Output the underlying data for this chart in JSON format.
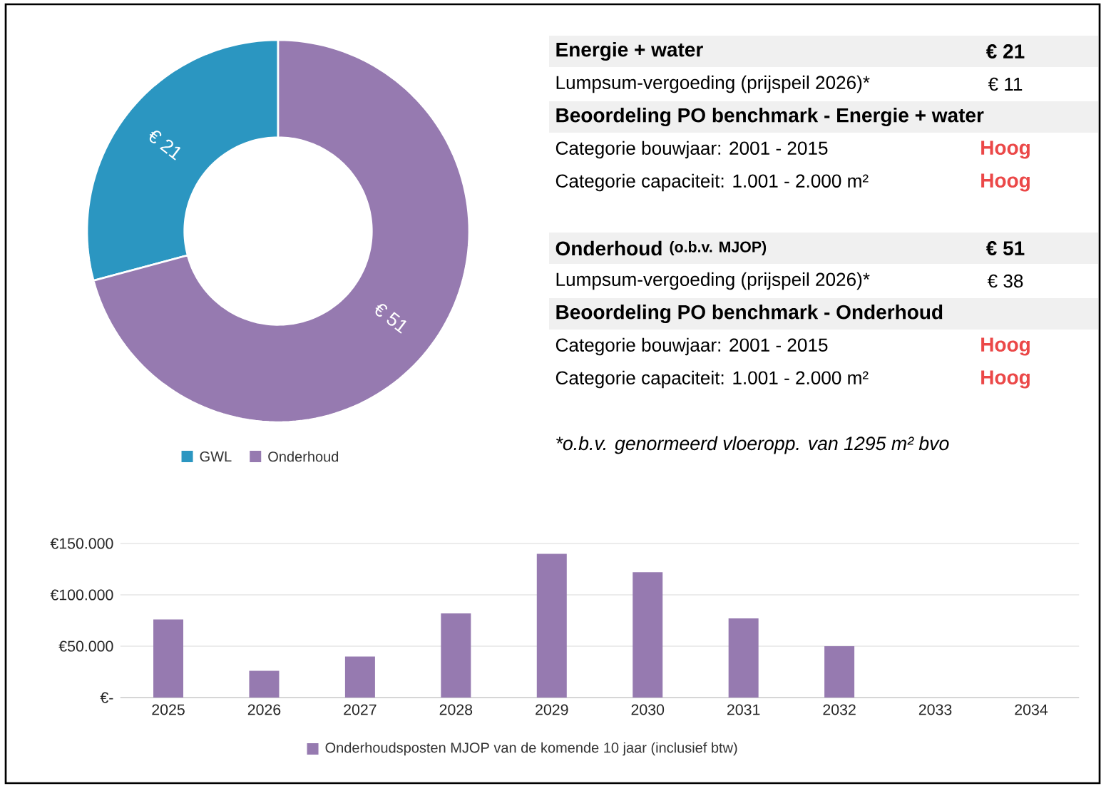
{
  "chart_data": [
    {
      "type": "donut",
      "categories": [
        "GWL",
        "Onderhoud"
      ],
      "values": [
        21,
        51
      ],
      "colors": [
        "#2b96c1",
        "#967ab0"
      ],
      "value_labels": [
        "€ 21",
        "€ 51"
      ],
      "legend": "bottom"
    },
    {
      "type": "other",
      "annotations": [
        "Energie + water",
        "€ 21",
        "Lumpsum-vergoeding (prijspeil 2026)*",
        "€ 11",
        "Beoordeling PO benchmark - Energie + water",
        "Categorie bouwjaar: 2001 - 2015",
        "Hoog",
        "Categorie capaciteit: 1.001 - 2.000 m²",
        "Hoog",
        "Onderhoud",
        "(o.b.v. MJOP)",
        "€ 51",
        "Lumpsum-vergoeding (prijspeil 2026)*",
        "€ 38",
        "Beoordeling PO benchmark - Onderhoud",
        "Categorie bouwjaar: 2001 - 2015",
        "Hoog",
        "Categorie capaciteit: 1.001 - 2.000 m²",
        "Hoog",
        "*o.b.v. genormeerd vloeropp. van 1295 m² bvo"
      ]
    },
    {
      "type": "bar",
      "categories": [
        "2025",
        "2026",
        "2027",
        "2028",
        "2029",
        "2030",
        "2031",
        "2032",
        "2033",
        "2034"
      ],
      "series": [
        {
          "name": "Onderhoudsposten MJOP van de komende 10 jaar (inclusief btw)",
          "color": "#967ab0",
          "values": [
            76000,
            26000,
            40000,
            82000,
            140000,
            122000,
            77000,
            50000,
            0,
            0
          ]
        }
      ],
      "ylim": [
        0,
        150000
      ],
      "yticks": [
        {
          "value": 0,
          "label": "€-"
        },
        {
          "value": 50000,
          "label": "€50.000"
        },
        {
          "value": 100000,
          "label": "€100.000"
        },
        {
          "value": 150000,
          "label": "€150.000"
        }
      ],
      "grid": "y",
      "legend": "bottom"
    }
  ]
}
